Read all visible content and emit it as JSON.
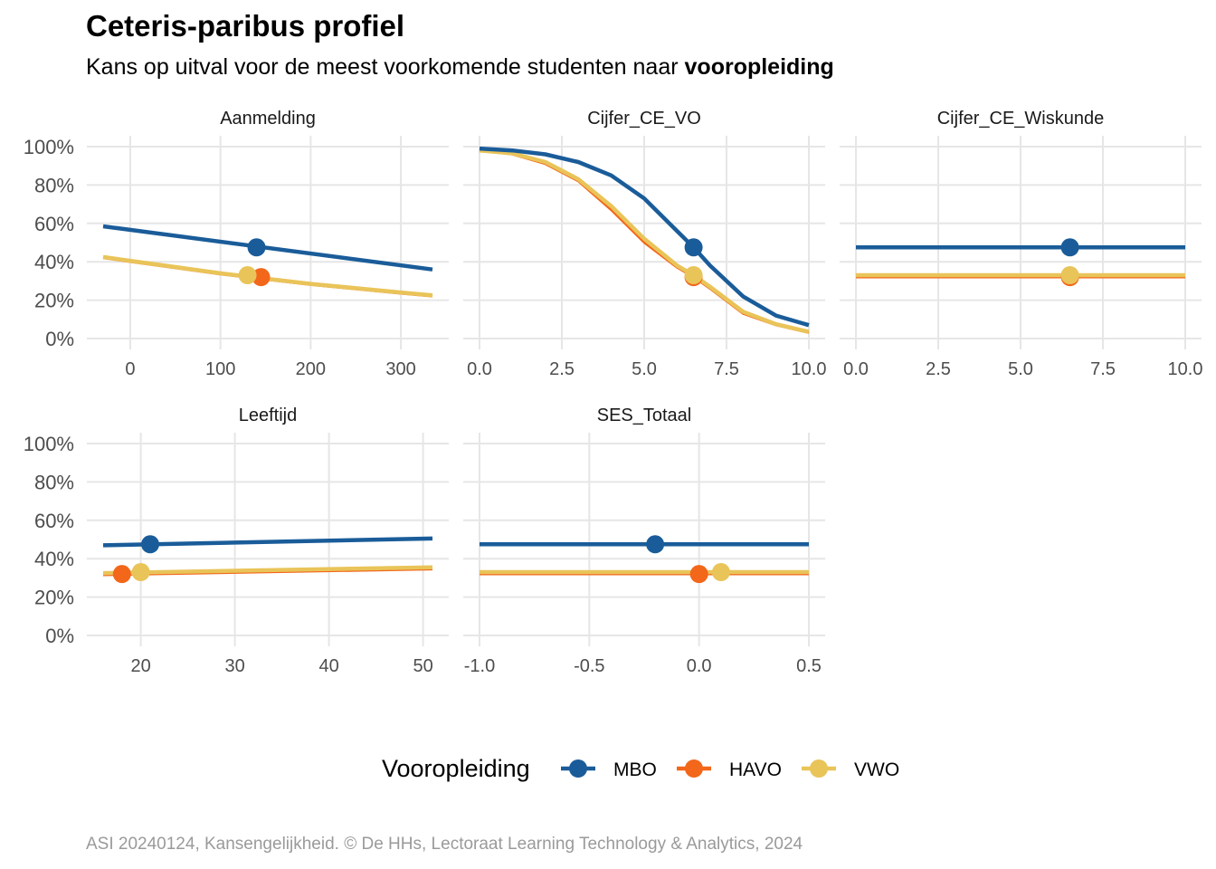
{
  "title": "Ceteris-paribus profiel",
  "subtitle_prefix": "Kans op uitval voor de meest voorkomende studenten naar ",
  "subtitle_bold": "vooropleiding",
  "caption": "ASI 20240124, Kansengelijkheid. © De HHs, Lectoraat Learning Technology & Analytics, 2024",
  "legend": {
    "title": "Vooropleiding",
    "items": [
      {
        "name": "MBO",
        "color": "#1a5c99"
      },
      {
        "name": "HAVO",
        "color": "#f2671a"
      },
      {
        "name": "VWO",
        "color": "#e9c459"
      }
    ]
  },
  "chart_data": [
    {
      "type": "line",
      "facet": "Aanmelding",
      "xlim": [
        -30,
        335
      ],
      "ylim": [
        0,
        1
      ],
      "xticks": [
        0,
        100,
        200,
        300
      ],
      "xtick_labels": [
        "0",
        "100",
        "200",
        "300"
      ],
      "yticks": [
        0,
        0.2,
        0.4,
        0.6,
        0.8,
        1.0
      ],
      "ytick_labels": [
        "0%",
        "20%",
        "40%",
        "60%",
        "80%",
        "100%"
      ],
      "series": [
        {
          "name": "MBO",
          "x": [
            -30,
            335
          ],
          "y": [
            0.585,
            0.36
          ],
          "point": [
            140,
            0.475
          ]
        },
        {
          "name": "HAVO",
          "x": [
            -30,
            0,
            100,
            200,
            300,
            335
          ],
          "y": [
            0.42,
            0.4,
            0.335,
            0.28,
            0.235,
            0.22
          ],
          "point": [
            145,
            0.32
          ]
        },
        {
          "name": "VWO",
          "x": [
            -30,
            0,
            100,
            200,
            300,
            335
          ],
          "y": [
            0.425,
            0.405,
            0.34,
            0.285,
            0.24,
            0.225
          ],
          "point": [
            130,
            0.33
          ]
        }
      ]
    },
    {
      "type": "line",
      "facet": "Cijfer_CE_VO",
      "xlim": [
        0,
        10
      ],
      "ylim": [
        0,
        1
      ],
      "xticks": [
        0,
        2.5,
        5,
        7.5,
        10
      ],
      "xtick_labels": [
        "0.0",
        "2.5",
        "5.0",
        "7.5",
        "10.0"
      ],
      "yticks": [
        0,
        0.2,
        0.4,
        0.6,
        0.8,
        1.0
      ],
      "ytick_labels": [
        "0%",
        "20%",
        "40%",
        "60%",
        "80%",
        "100%"
      ],
      "series": [
        {
          "name": "MBO",
          "x": [
            0,
            1,
            2,
            3,
            4,
            5,
            6,
            6.5,
            7,
            8,
            9,
            10
          ],
          "y": [
            0.99,
            0.98,
            0.96,
            0.92,
            0.85,
            0.73,
            0.56,
            0.475,
            0.38,
            0.22,
            0.12,
            0.07
          ],
          "point": [
            6.5,
            0.475
          ]
        },
        {
          "name": "HAVO",
          "x": [
            0,
            1,
            2,
            3,
            4,
            5,
            6,
            6.5,
            7,
            8,
            9,
            10
          ],
          "y": [
            0.98,
            0.96,
            0.91,
            0.82,
            0.67,
            0.5,
            0.37,
            0.32,
            0.26,
            0.13,
            0.07,
            0.03
          ],
          "point": [
            6.5,
            0.32
          ]
        },
        {
          "name": "VWO",
          "x": [
            0,
            1,
            2,
            3,
            4,
            5,
            6,
            6.5,
            7,
            8,
            9,
            10
          ],
          "y": [
            0.98,
            0.965,
            0.92,
            0.83,
            0.69,
            0.52,
            0.38,
            0.33,
            0.27,
            0.14,
            0.075,
            0.035
          ],
          "point": [
            6.5,
            0.33
          ]
        }
      ]
    },
    {
      "type": "line",
      "facet": "Cijfer_CE_Wiskunde",
      "xlim": [
        0,
        10
      ],
      "ylim": [
        0,
        1
      ],
      "xticks": [
        0,
        2.5,
        5,
        7.5,
        10
      ],
      "xtick_labels": [
        "0.0",
        "2.5",
        "5.0",
        "7.5",
        "10.0"
      ],
      "yticks": [
        0,
        0.2,
        0.4,
        0.6,
        0.8,
        1.0
      ],
      "ytick_labels": [
        "0%",
        "20%",
        "40%",
        "60%",
        "80%",
        "100%"
      ],
      "series": [
        {
          "name": "MBO",
          "x": [
            0,
            10
          ],
          "y": [
            0.475,
            0.475
          ],
          "point": [
            6.5,
            0.475
          ]
        },
        {
          "name": "HAVO",
          "x": [
            0,
            10
          ],
          "y": [
            0.32,
            0.32
          ],
          "point": [
            6.5,
            0.32
          ]
        },
        {
          "name": "VWO",
          "x": [
            0,
            10
          ],
          "y": [
            0.33,
            0.33
          ],
          "point": [
            6.5,
            0.33
          ]
        }
      ]
    },
    {
      "type": "line",
      "facet": "Leeftijd",
      "xlim": [
        16,
        51
      ],
      "ylim": [
        0,
        1
      ],
      "xticks": [
        20,
        30,
        40,
        50
      ],
      "xtick_labels": [
        "20",
        "30",
        "40",
        "50"
      ],
      "yticks": [
        0,
        0.2,
        0.4,
        0.6,
        0.8,
        1.0
      ],
      "ytick_labels": [
        "0%",
        "20%",
        "40%",
        "60%",
        "80%",
        "100%"
      ],
      "series": [
        {
          "name": "MBO",
          "x": [
            16,
            51
          ],
          "y": [
            0.47,
            0.505
          ],
          "point": [
            21,
            0.475
          ]
        },
        {
          "name": "HAVO",
          "x": [
            16,
            51
          ],
          "y": [
            0.315,
            0.345
          ],
          "point": [
            18,
            0.32
          ]
        },
        {
          "name": "VWO",
          "x": [
            16,
            51
          ],
          "y": [
            0.325,
            0.355
          ],
          "point": [
            20,
            0.33
          ]
        }
      ]
    },
    {
      "type": "line",
      "facet": "SES_Totaal",
      "xlim": [
        -1,
        0.5
      ],
      "ylim": [
        0,
        1
      ],
      "xticks": [
        -1,
        -0.5,
        0,
        0.5
      ],
      "xtick_labels": [
        "-1.0",
        "-0.5",
        "0.0",
        "0.5"
      ],
      "yticks": [
        0,
        0.2,
        0.4,
        0.6,
        0.8,
        1.0
      ],
      "ytick_labels": [
        "0%",
        "20%",
        "40%",
        "60%",
        "80%",
        "100%"
      ],
      "series": [
        {
          "name": "MBO",
          "x": [
            -1,
            0.5
          ],
          "y": [
            0.475,
            0.475
          ],
          "point": [
            -0.2,
            0.475
          ]
        },
        {
          "name": "HAVO",
          "x": [
            -1,
            0.5
          ],
          "y": [
            0.32,
            0.32
          ],
          "point": [
            0,
            0.32
          ]
        },
        {
          "name": "VWO",
          "x": [
            -1,
            0.5
          ],
          "y": [
            0.33,
            0.33
          ],
          "point": [
            0.1,
            0.33
          ]
        }
      ]
    }
  ]
}
